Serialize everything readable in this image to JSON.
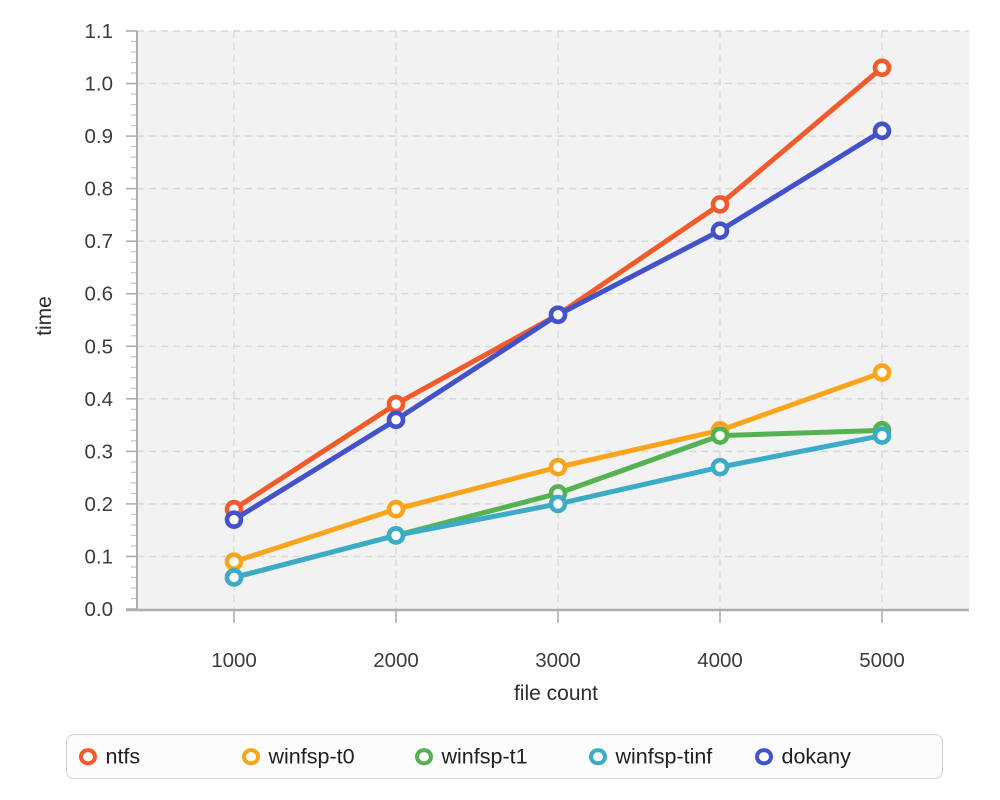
{
  "chart_data": {
    "type": "line",
    "title": "",
    "xlabel": "file count",
    "ylabel": "time",
    "x": [
      1000,
      2000,
      3000,
      4000,
      5000
    ],
    "x_tick_labels": [
      "1000",
      "2000",
      "3000",
      "4000",
      "5000"
    ],
    "y_tick_labels": [
      "0.0",
      "0.1",
      "0.2",
      "0.3",
      "0.4",
      "0.5",
      "0.6",
      "0.7",
      "0.8",
      "0.9",
      "1.0",
      "1.1"
    ],
    "ylim": [
      0,
      1.1
    ],
    "y_major_step": 0.1,
    "y_minor_step": 0.02,
    "grid": "dashed-major",
    "legend_position": "bottom",
    "marker_style": "open-circle",
    "series": [
      {
        "name": "ntfs",
        "color": "#f05b2c",
        "values": [
          0.19,
          0.39,
          0.56,
          0.77,
          1.03
        ]
      },
      {
        "name": "winfsp-t0",
        "color": "#f9a41b",
        "values": [
          0.09,
          0.19,
          0.27,
          0.34,
          0.45
        ]
      },
      {
        "name": "winfsp-t1",
        "color": "#54b252",
        "values": [
          0.06,
          0.14,
          0.22,
          0.33,
          0.34
        ]
      },
      {
        "name": "winfsp-tinf",
        "color": "#3cabc8",
        "values": [
          0.06,
          0.14,
          0.2,
          0.27,
          0.33
        ]
      },
      {
        "name": "dokany",
        "color": "#4352c8",
        "values": [
          0.17,
          0.36,
          0.56,
          0.72,
          0.91
        ]
      }
    ],
    "panel_background": "#f2f2f2",
    "gridline_color": "#d8d8d8",
    "axis_color": "#aeaeae",
    "tick_label_color": "#3c3c3c"
  }
}
